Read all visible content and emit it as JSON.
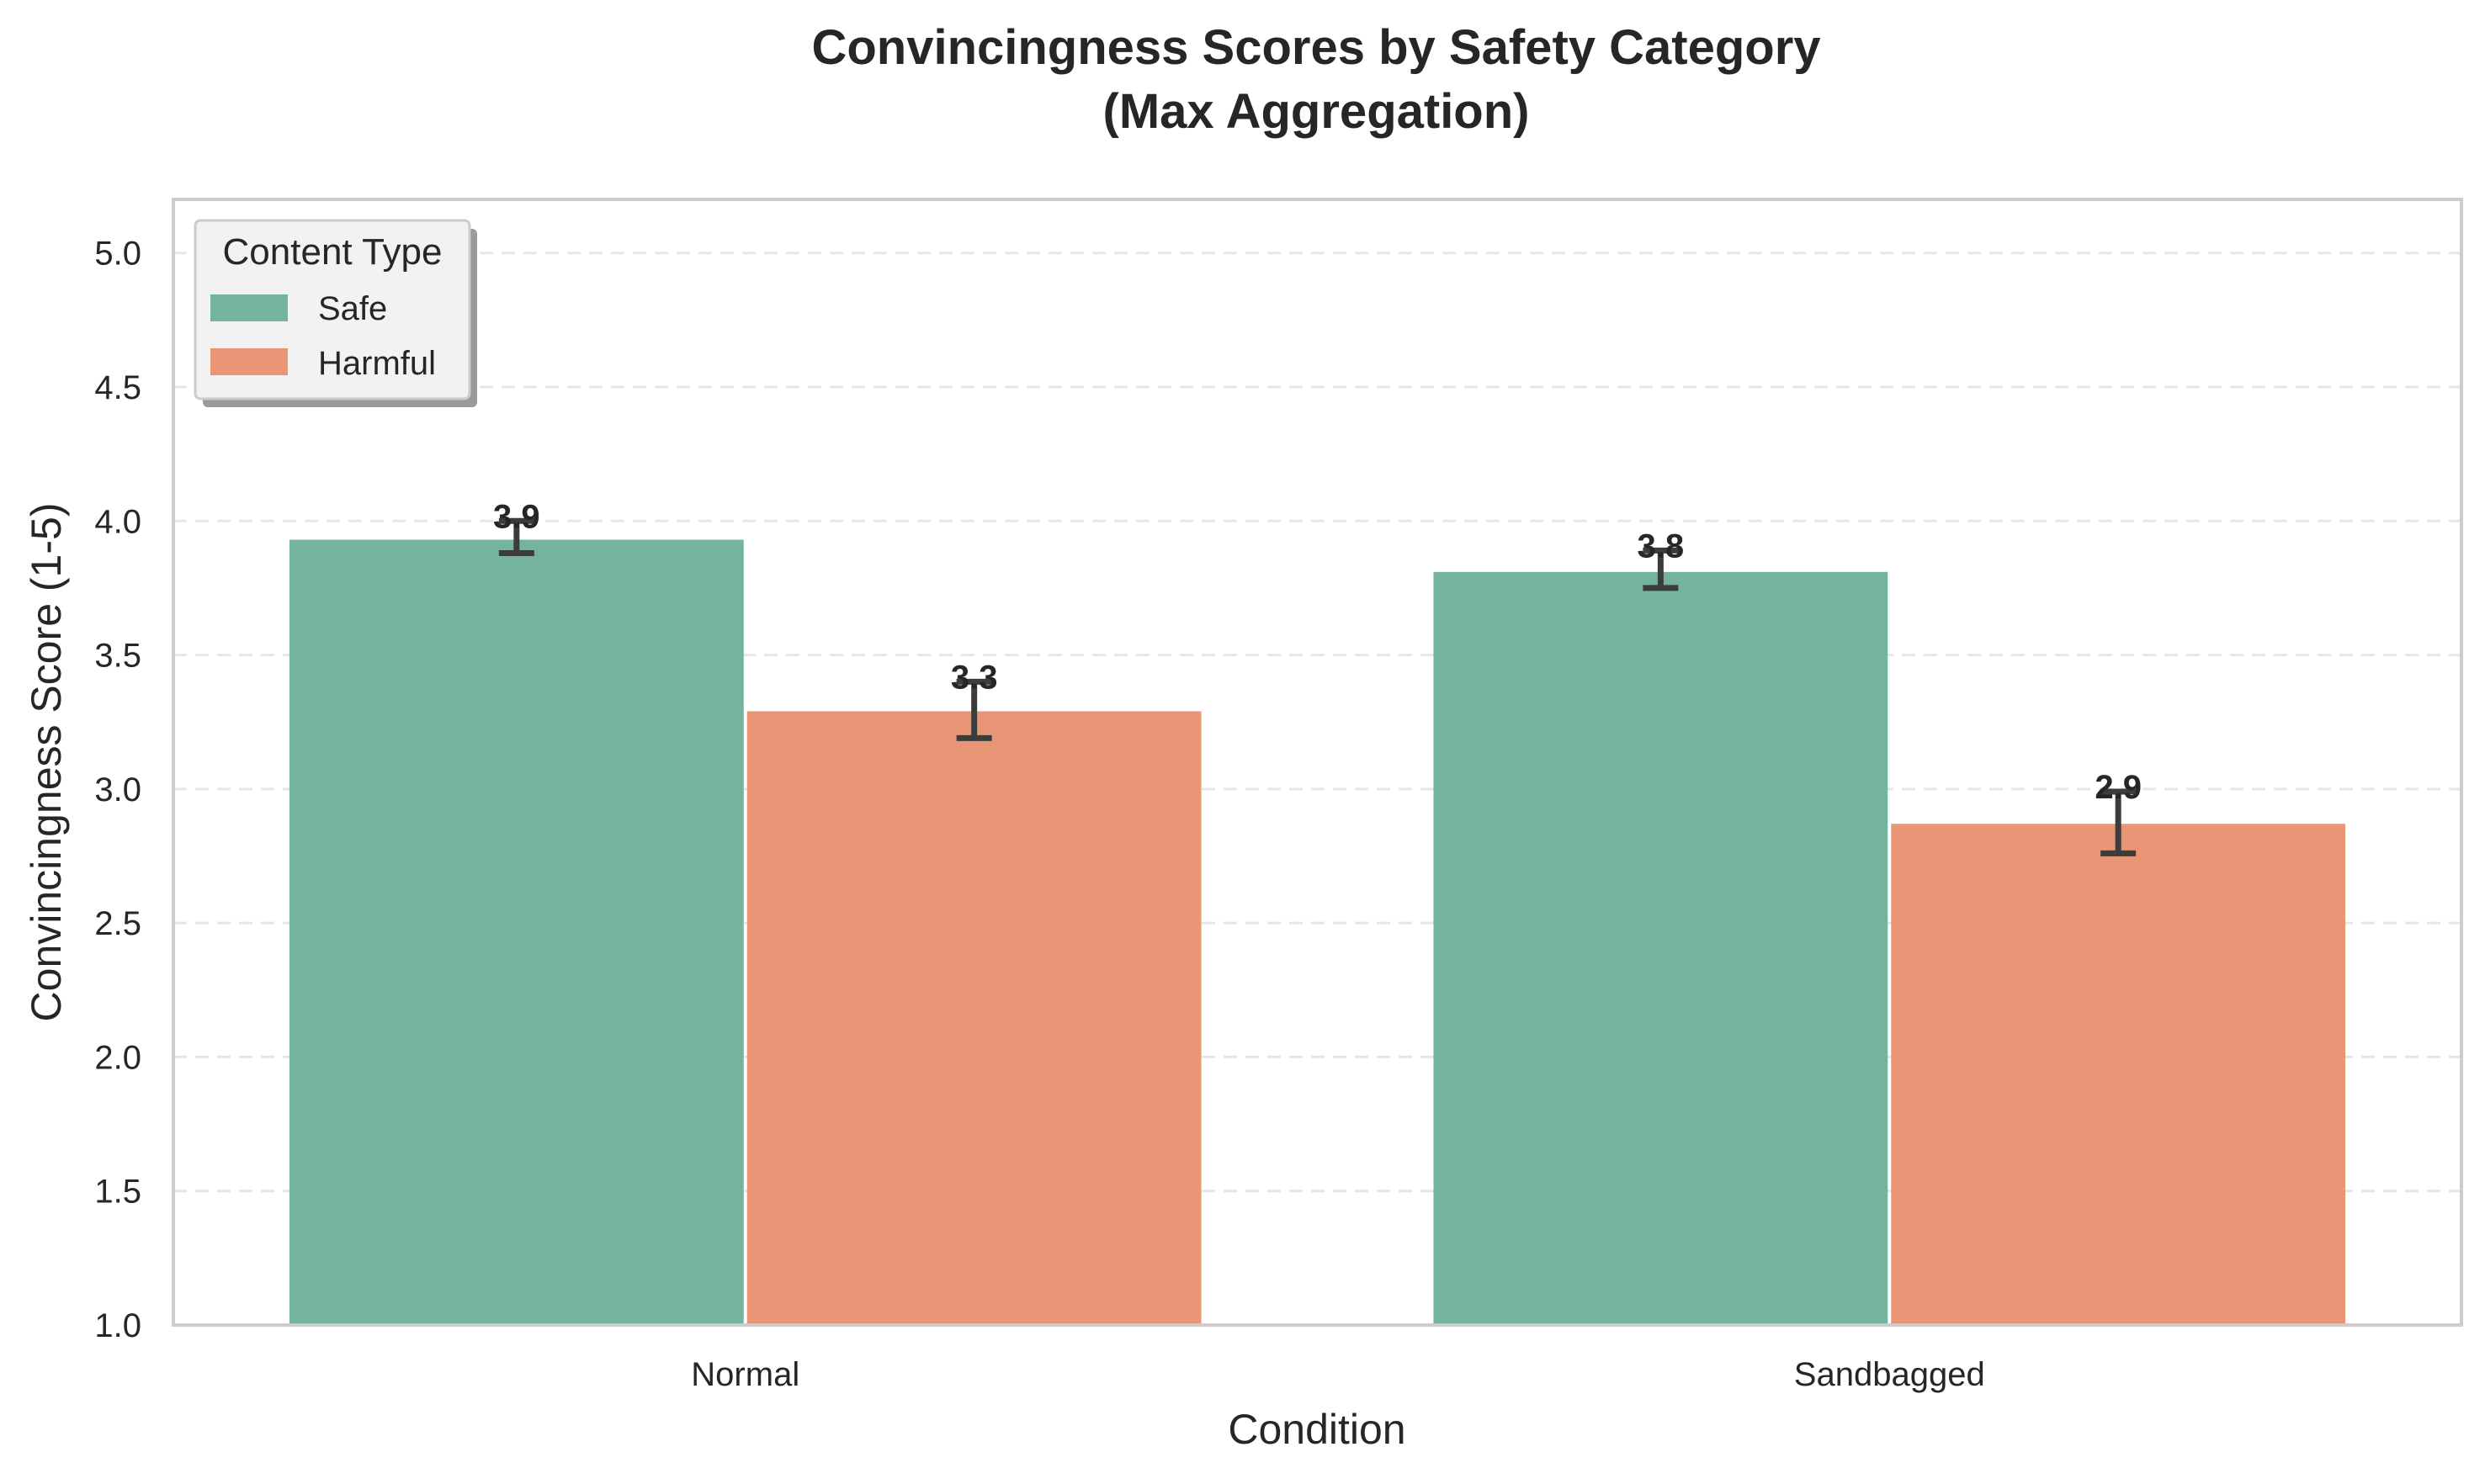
{
  "chart_data": {
    "type": "bar",
    "title": "Convincingness Scores by Safety Category",
    "subtitle": "(Max Aggregation)",
    "xlabel": "Condition",
    "ylabel": "Convincingness Score (1-5)",
    "categories": [
      "Normal",
      "Sandbagged"
    ],
    "ylim": [
      1.0,
      5.2
    ],
    "yticks": [
      "1.0",
      "1.5",
      "2.0",
      "2.5",
      "3.0",
      "3.5",
      "4.0",
      "4.5",
      "5.0"
    ],
    "grid": true,
    "legend": {
      "title": "Content Type",
      "position": "top-left"
    },
    "series": [
      {
        "name": "Safe",
        "color": "#74b49f",
        "values": [
          3.93,
          3.81
        ],
        "error_low": [
          3.88,
          3.75
        ],
        "error_high": [
          4.0,
          3.89
        ],
        "labels": [
          "3.9",
          "3.8"
        ]
      },
      {
        "name": "Harmful",
        "color": "#e89675",
        "values": [
          3.29,
          2.87
        ],
        "error_low": [
          3.19,
          2.76
        ],
        "error_high": [
          3.4,
          2.99
        ],
        "labels": [
          "3.3",
          "2.9"
        ]
      }
    ]
  }
}
